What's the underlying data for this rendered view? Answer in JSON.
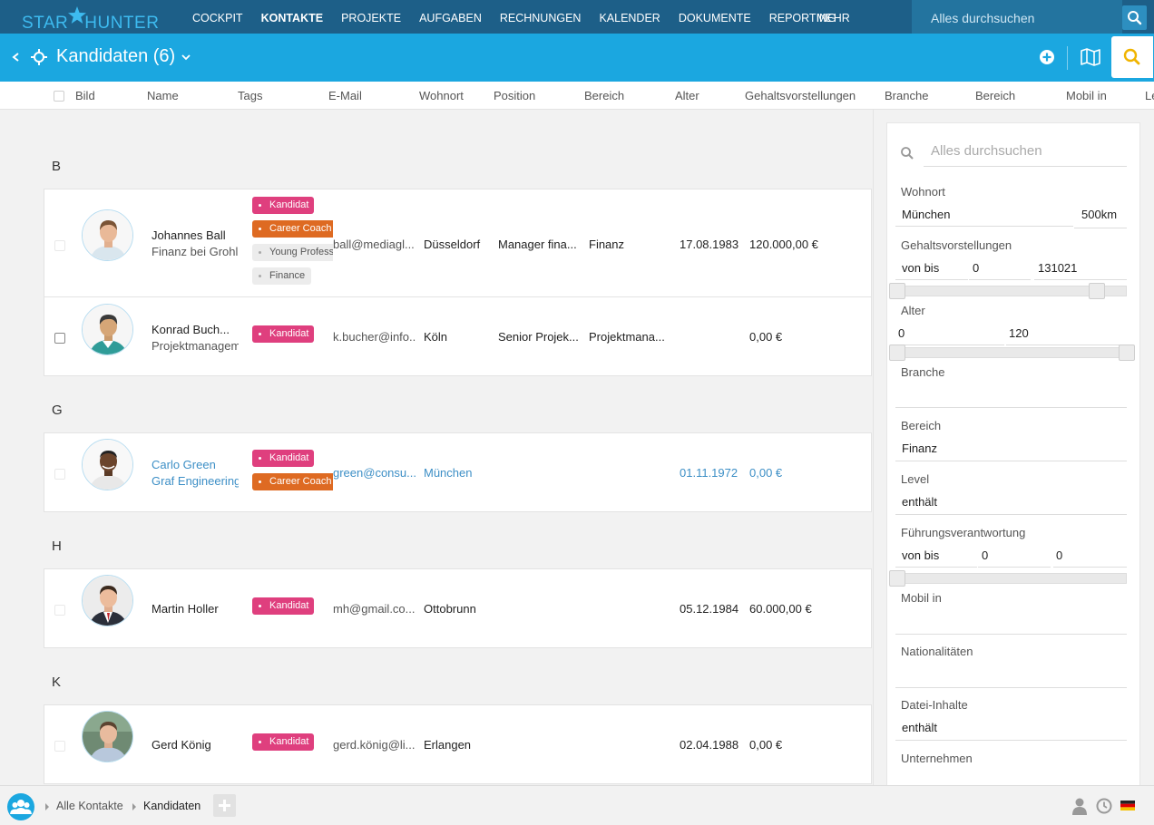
{
  "app": {
    "logo_star": "STAR",
    "logo_hunter": "HUNTER"
  },
  "nav": {
    "items": [
      "COCKPIT",
      "KONTAKTE",
      "PROJEKTE",
      "AUFGABEN",
      "RECHNUNGEN",
      "KALENDER",
      "DOKUMENTE",
      "REPORTING"
    ],
    "active": "KONTAKTE",
    "more": "MEHR",
    "search_placeholder": "Alles durchsuchen"
  },
  "subheader": {
    "title": "Kandidaten (6)"
  },
  "columns": {
    "bild": "Bild",
    "name": "Name",
    "tags": "Tags",
    "email": "E-Mail",
    "wohnort": "Wohnort",
    "position": "Position",
    "bereich": "Bereich",
    "alter": "Alter",
    "gehalt": "Gehaltsvorstellungen",
    "branche": "Branche",
    "bereich2": "Bereich",
    "mobil": "Mobil in",
    "le": "Le"
  },
  "groups": [
    {
      "letter": "B",
      "rows": [
        {
          "name": "Johannes Ball",
          "sub": "Finanz bei Grohl",
          "email": "ball@mediagl...",
          "wohnort": "Düsseldorf",
          "position": "Manager fina...",
          "bereich": "Finanz",
          "alter": "17.08.1983",
          "gehalt": "120.000,00 €",
          "tags": [
            "Kandidat",
            "Career Coach",
            "Young Professional",
            "Finance"
          ]
        },
        {
          "name": "Konrad Buch...",
          "sub": "Projektmanagement",
          "email": "k.bucher@info...",
          "wohnort": "Köln",
          "position": "Senior Projek...",
          "bereich": "Projektmana...",
          "alter": "",
          "gehalt": "0,00 €",
          "tags": [
            "Kandidat"
          ]
        }
      ]
    },
    {
      "letter": "G",
      "rows": [
        {
          "name": "Carlo Green",
          "sub": "Graf Engineering",
          "email": "green@consu...",
          "wohnort": "München",
          "position": "",
          "bereich": "",
          "alter": "01.11.1972",
          "gehalt": "0,00 €",
          "tags": [
            "Kandidat",
            "Career Coach"
          ]
        }
      ]
    },
    {
      "letter": "H",
      "rows": [
        {
          "name": "Martin Holler",
          "sub": "",
          "email": "mh@gmail.co...",
          "wohnort": "Ottobrunn",
          "position": "",
          "bereich": "",
          "alter": "05.12.1984",
          "gehalt": "60.000,00 €",
          "tags": [
            "Kandidat"
          ]
        }
      ]
    },
    {
      "letter": "K",
      "rows": [
        {
          "name": "Gerd König",
          "sub": "",
          "email": "gerd.könig@li...",
          "wohnort": "Erlangen",
          "position": "",
          "bereich": "",
          "alter": "02.04.1988",
          "gehalt": "0,00 €",
          "tags": [
            "Kandidat"
          ]
        }
      ]
    }
  ],
  "filters": {
    "search_placeholder": "Alles durchsuchen",
    "wohnort": {
      "label": "Wohnort",
      "value": "München",
      "radius": "500km"
    },
    "gehalt": {
      "label": "Gehaltsvorstellungen",
      "mode": "von bis",
      "min": "0",
      "max": "131021"
    },
    "alter": {
      "label": "Alter",
      "min": "0",
      "max": "120"
    },
    "branche": {
      "label": "Branche"
    },
    "bereich": {
      "label": "Bereich",
      "value": "Finanz"
    },
    "level": {
      "label": "Level",
      "value": "enthält"
    },
    "fuehrung": {
      "label": "Führungsverantwortung",
      "mode": "von bis",
      "min": "0",
      "max": "0"
    },
    "mobil": {
      "label": "Mobil in"
    },
    "nationalitaeten": {
      "label": "Nationalitäten"
    },
    "datei": {
      "label": "Datei-Inhalte",
      "value": "enthält"
    },
    "unternehmen": {
      "label": "Unternehmen"
    }
  },
  "footer": {
    "crumb1": "Alle Kontakte",
    "crumb2": "Kandidaten"
  },
  "colors": {
    "nav": "#1d5f88",
    "accent": "#1ba7e0",
    "tag_pink": "#df3f7e",
    "tag_orange": "#de6a22",
    "search_icon": "#f0b400"
  }
}
